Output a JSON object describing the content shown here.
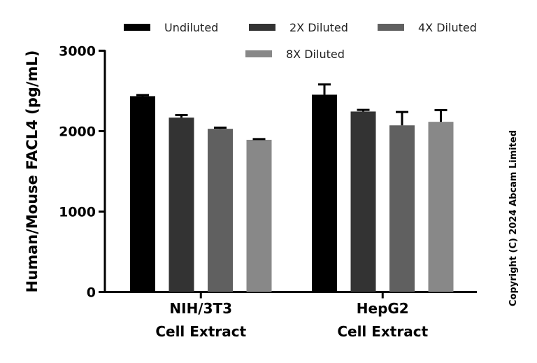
{
  "chart_data": {
    "type": "bar",
    "title": "",
    "ylabel": "Human/Mouse FACL4 (pg/mL)",
    "xlabel": "",
    "ylim": [
      0,
      3000
    ],
    "yticks": [
      0,
      1000,
      2000,
      3000
    ],
    "ytick_labels": [
      "0",
      "1000",
      "2000",
      "3000"
    ],
    "categories": [
      [
        "NIH/3T3",
        "Cell Extract"
      ],
      [
        "HepG2",
        "Cell Extract"
      ]
    ],
    "legend_position": "top",
    "series": [
      {
        "name": "Undiluted",
        "color": "#000000",
        "values": [
          2435,
          2453
        ],
        "errors": [
          14,
          127
        ]
      },
      {
        "name": "2X Diluted",
        "color": "#333333",
        "values": [
          2168,
          2244
        ],
        "errors": [
          32,
          20
        ]
      },
      {
        "name": "4X Diluted",
        "color": "#606060",
        "values": [
          2029,
          2072
        ],
        "errors": [
          15,
          166
        ]
      },
      {
        "name": "8X Diluted",
        "color": "#888888",
        "values": [
          1892,
          2116
        ],
        "errors": [
          9,
          145
        ]
      }
    ],
    "annotation": "Copyright (C) 2024 Abcam Limited"
  }
}
